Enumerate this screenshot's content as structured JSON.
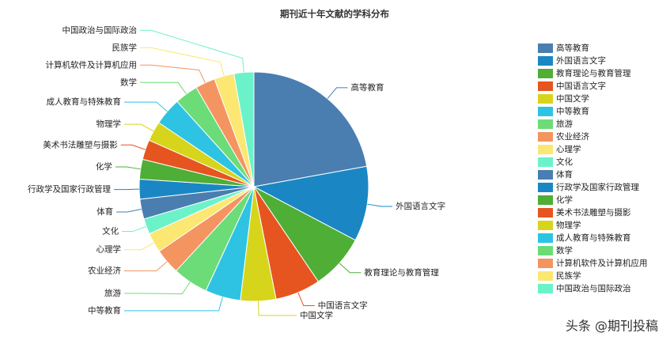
{
  "chart_data": {
    "type": "pie",
    "title": "期刊近十年文献的学科分布",
    "categories": [
      "高等教育",
      "外国语言文字",
      "教育理论与教育管理",
      "中国语言文字",
      "中国文学",
      "中等教育",
      "旅游",
      "农业经济",
      "心理学",
      "文化",
      "体育",
      "行政学及国家行政管理",
      "化学",
      "美术书法雕塑与摄影",
      "物理学",
      "成人教育与特殊教育",
      "数学",
      "计算机软件及计算机应用",
      "民族学",
      "中国政治与国际政治"
    ],
    "values": [
      22.2,
      10.6,
      7.8,
      6.4,
      5,
      5,
      5,
      3.6,
      2.8,
      2.2,
      2.8,
      2.8,
      2.8,
      2.8,
      2.8,
      3.9,
      3.3,
      2.8,
      2.8,
      2.8
    ],
    "colors": [
      "#4a7eb0",
      "#1a87c4",
      "#4fae36",
      "#e6551f",
      "#d6d51c",
      "#2ec3e3",
      "#6cdc78",
      "#f49460",
      "#fbe772",
      "#6cf2c9",
      "#4a7eb0",
      "#1a87c4",
      "#4fae36",
      "#e6551f",
      "#d6d51c",
      "#2ec3e3",
      "#6cdc78",
      "#f49460",
      "#fbe772",
      "#6cf2c9"
    ],
    "legend": "right",
    "watermark": "头条 @期刊投稿"
  }
}
